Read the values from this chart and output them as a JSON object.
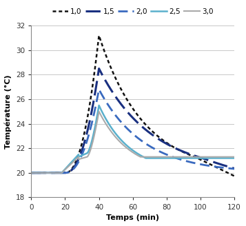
{
  "title": "",
  "xlabel": "Temps (min)",
  "ylabel": "Température (°C)",
  "xlim": [
    0,
    120
  ],
  "ylim": [
    18,
    32
  ],
  "yticks": [
    18,
    20,
    22,
    24,
    26,
    28,
    30,
    32
  ],
  "xticks": [
    0,
    20,
    40,
    60,
    80,
    100,
    120
  ],
  "legend_labels": [
    "1,0",
    "1,5",
    "2,0",
    "2,5",
    "3,0"
  ],
  "series_colors": [
    "#111111",
    "#1a3080",
    "#3a6abf",
    "#5ab0cc",
    "#aaaaaa"
  ],
  "background_color": "#ffffff",
  "grid_color": "#c8c8c8",
  "axis_color": "#888888"
}
